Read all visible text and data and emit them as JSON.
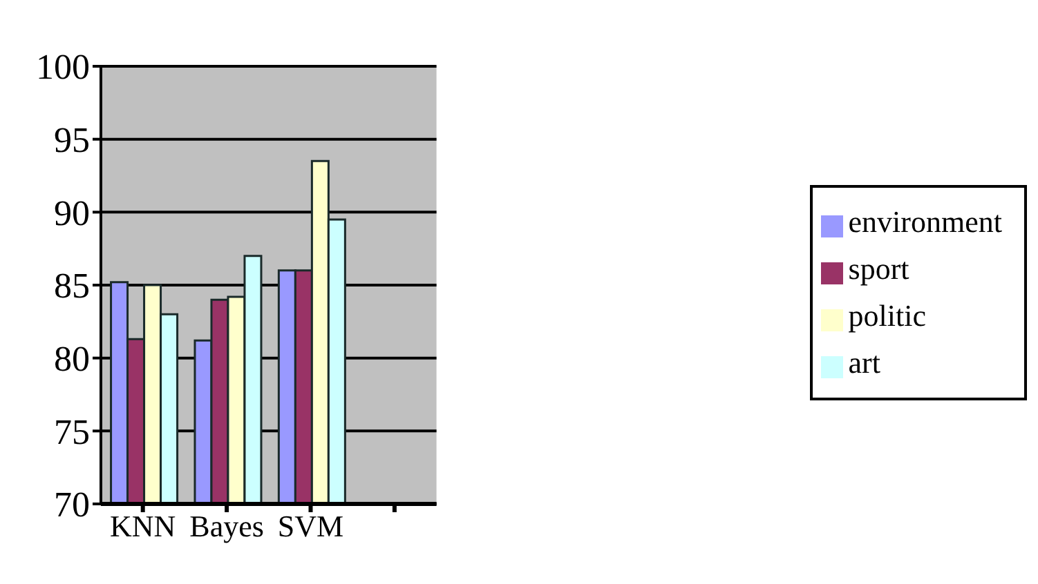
{
  "chart_data": {
    "type": "bar",
    "categories": [
      "KNN",
      "Bayes",
      "SVM",
      null
    ],
    "series": [
      {
        "name": "environment",
        "color": "#9999ff",
        "values": [
          85.2,
          81.2,
          86,
          null
        ]
      },
      {
        "name": "sport",
        "color": "#993366",
        "values": [
          81.3,
          84,
          86,
          null
        ]
      },
      {
        "name": "politic",
        "color": "#ffffcc",
        "values": [
          85,
          84.2,
          93.5,
          null
        ]
      },
      {
        "name": "art",
        "color": "#ccffff",
        "values": [
          83,
          87,
          89.5,
          null
        ]
      }
    ],
    "ylim": [
      70,
      100
    ],
    "yticks": [
      70,
      75,
      80,
      85,
      90,
      95,
      100
    ],
    "grid": "y",
    "legend": "right"
  }
}
